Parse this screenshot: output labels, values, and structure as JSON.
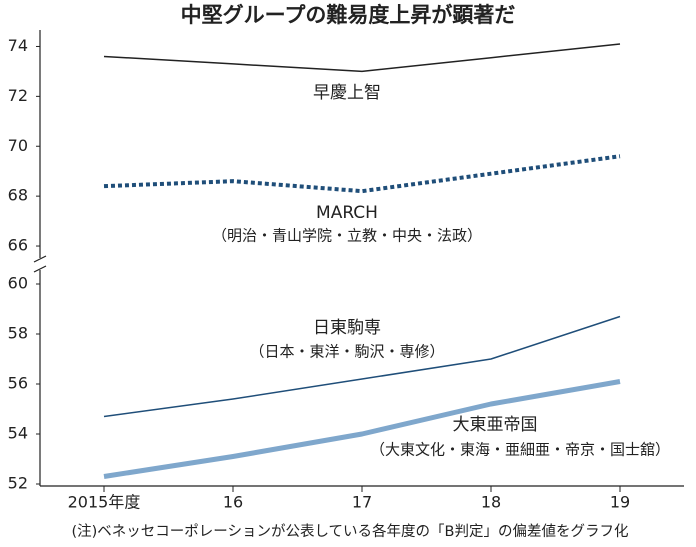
{
  "chart_data": [
    {
      "type": "line",
      "title": "中堅グループの難易度上昇が顕著だ",
      "ylim": [
        65.4,
        74.5
      ],
      "yticks": [
        66,
        68,
        70,
        72,
        74
      ],
      "series": [
        {
          "name": "早慶上智",
          "color": "#222222",
          "style": "solid",
          "values": [
            73.6,
            73.3,
            73.0,
            73.55,
            74.1
          ]
        },
        {
          "name": "MARCH",
          "sublabel": "（明治・青山学院・立教・中央・法政）",
          "color": "#1f4e79",
          "style": "dotted",
          "values": [
            68.4,
            68.6,
            68.2,
            68.9,
            69.6
          ]
        }
      ]
    },
    {
      "type": "line",
      "note": "(注)ベネッセコーポレーションが公表している各年度の「B判定」の偏差値をグラフ化",
      "categories": [
        "2015年度",
        "16",
        "17",
        "18",
        "19"
      ],
      "ylim": [
        52,
        60.6
      ],
      "yticks": [
        52,
        54,
        56,
        58,
        60
      ],
      "series": [
        {
          "name": "日東駒専",
          "sublabel": "（日本・東洋・駒沢・専修）",
          "color": "#1f4e79",
          "style": "solid",
          "values": [
            54.7,
            55.4,
            56.2,
            57.0,
            58.7
          ]
        },
        {
          "name": "大東亜帝国",
          "sublabel": "（大東文化・東海・亜細亜・帝京・国士舘）",
          "color": "#7fa7cc",
          "style": "thick",
          "values": [
            52.3,
            53.1,
            54.0,
            55.2,
            56.1
          ]
        }
      ]
    }
  ]
}
